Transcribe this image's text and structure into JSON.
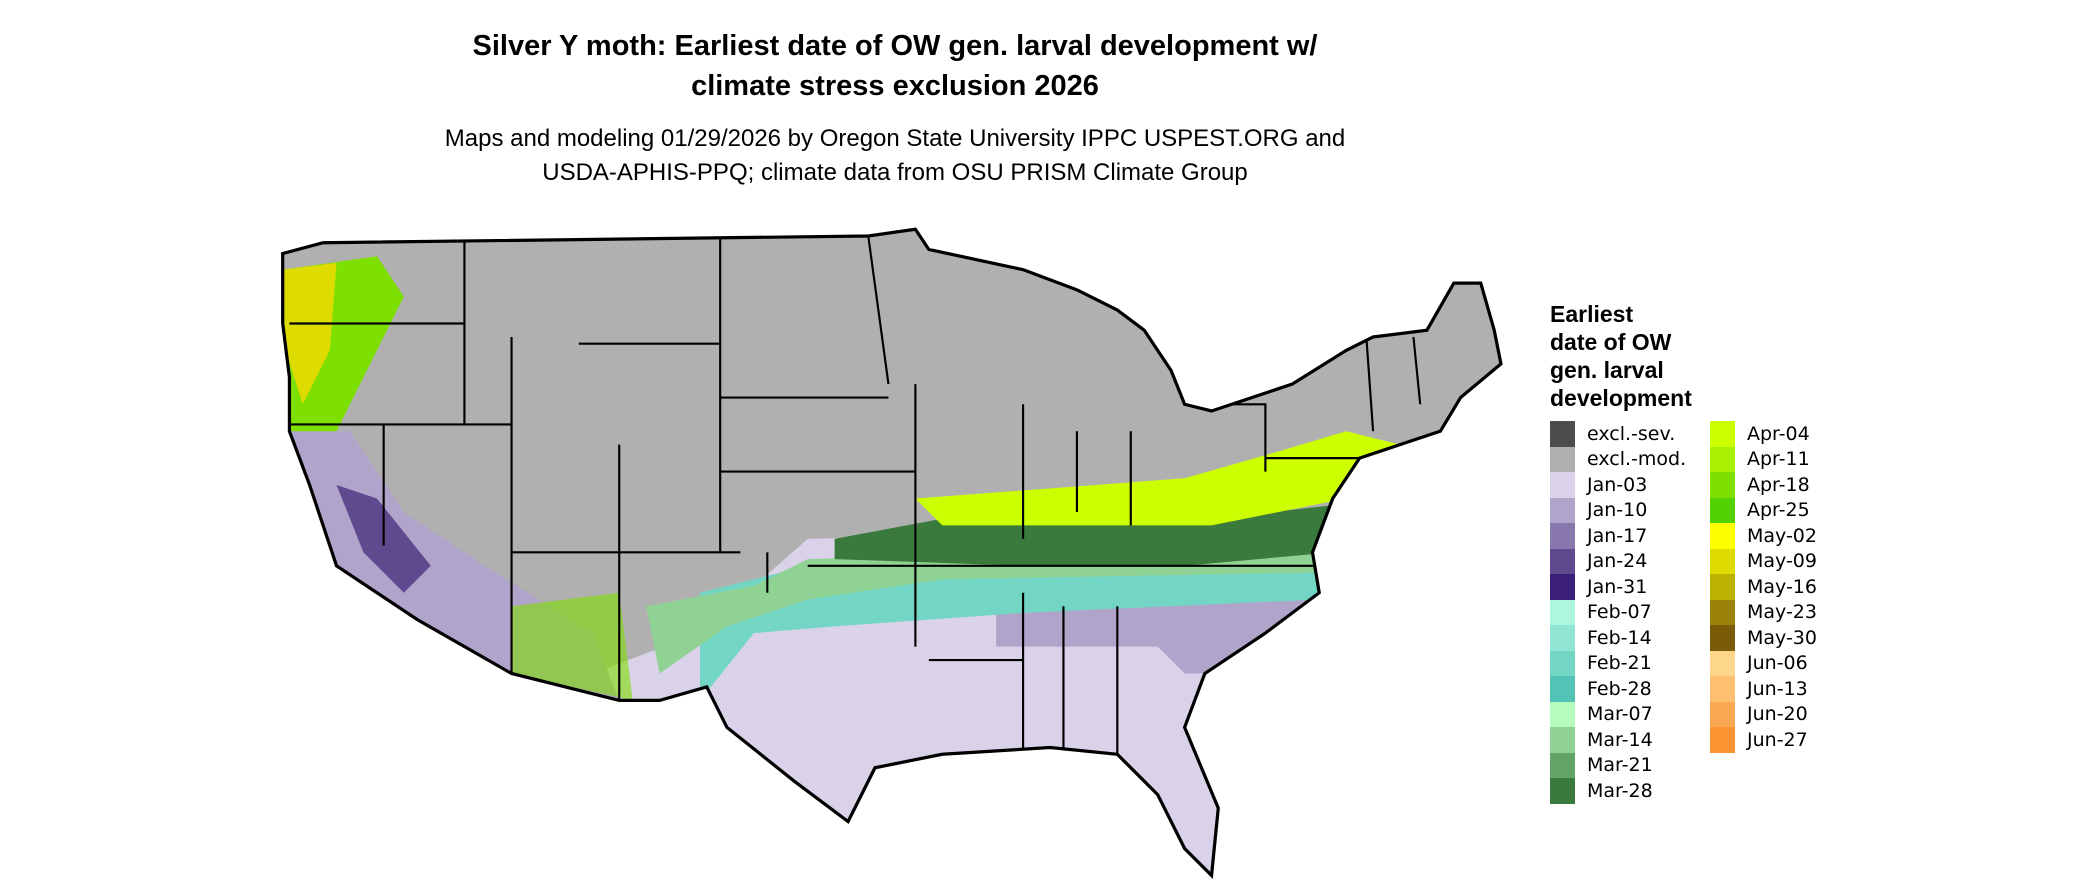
{
  "title": [
    "Silver Y moth: Earliest date of OW gen. larval development w/",
    "climate stress exclusion 2026"
  ],
  "subtitle": [
    "Maps and modeling 01/29/2026 by Oregon State University IPPC USPEST.ORG and",
    "USDA-APHIS-PPQ; climate data from OSU PRISM Climate Group"
  ],
  "legend": {
    "title": [
      "Earliest",
      "date of OW",
      "gen. larval",
      "development"
    ],
    "items": [
      {
        "label": "excl.-sev.",
        "color": "#4d4d4d"
      },
      {
        "label": "excl.-mod.",
        "color": "#b0b0b0"
      },
      {
        "label": "Jan-03",
        "color": "#d9d2e9"
      },
      {
        "label": "Jan-10",
        "color": "#b0a4cb"
      },
      {
        "label": "Jan-17",
        "color": "#8878ad"
      },
      {
        "label": "Jan-24",
        "color": "#5f4a90"
      },
      {
        "label": "Jan-31",
        "color": "#3a1e78"
      },
      {
        "label": "Feb-07",
        "color": "#adf7e1"
      },
      {
        "label": "Feb-14",
        "color": "#90e6d3"
      },
      {
        "label": "Feb-21",
        "color": "#73d6c4"
      },
      {
        "label": "Feb-28",
        "color": "#52c3b4"
      },
      {
        "label": "Mar-07",
        "color": "#b6fcbf"
      },
      {
        "label": "Mar-14",
        "color": "#90d294"
      },
      {
        "label": "Mar-21",
        "color": "#62a466"
      },
      {
        "label": "Mar-28",
        "color": "#3b7a3d"
      },
      {
        "label": "Apr-04",
        "color": "#ccff00"
      },
      {
        "label": "Apr-11",
        "color": "#a8ef00"
      },
      {
        "label": "Apr-18",
        "color": "#7ee000"
      },
      {
        "label": "Apr-25",
        "color": "#52d200"
      },
      {
        "label": "May-02",
        "color": "#ffff00"
      },
      {
        "label": "May-09",
        "color": "#dddb00"
      },
      {
        "label": "May-16",
        "color": "#bbb100"
      },
      {
        "label": "May-23",
        "color": "#9a8208"
      },
      {
        "label": "May-30",
        "color": "#7a5c08"
      },
      {
        "label": "Jun-06",
        "color": "#fdd68c"
      },
      {
        "label": "Jun-13",
        "color": "#fdc070"
      },
      {
        "label": "Jun-20",
        "color": "#fba852"
      },
      {
        "label": "Jun-27",
        "color": "#fb9532"
      }
    ]
  }
}
